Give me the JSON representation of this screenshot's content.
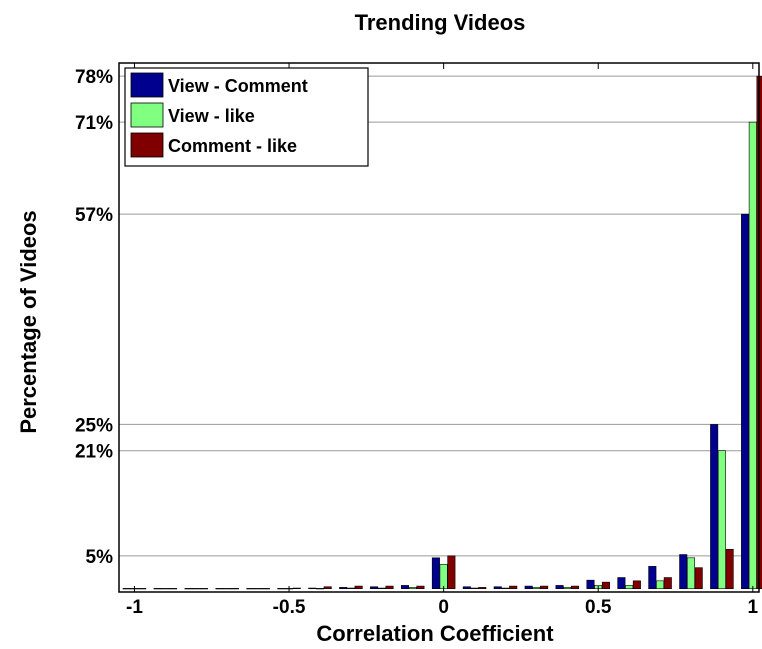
{
  "chart_data": {
    "type": "bar",
    "title": "Trending Videos",
    "xlabel": "Correlation Coefficient",
    "ylabel": "Percentage of Videos",
    "xlim": [
      -1.05,
      1.02
    ],
    "ylim": [
      -0.5,
      80
    ],
    "x_ticks": [
      -1,
      -0.5,
      0,
      0.5,
      1
    ],
    "x_tick_labels": [
      "-1",
      "-0.5",
      "0",
      "0.5",
      "1"
    ],
    "y_ticks": [
      5,
      21,
      25,
      57,
      71,
      78
    ],
    "y_tick_labels": [
      "5%",
      "21%",
      "25%",
      "57%",
      "71%",
      "78%"
    ],
    "grid": "horizontal at y ticks",
    "legend_position": "top-left",
    "x": [
      -1,
      -0.9,
      -0.8,
      -0.7,
      -0.6,
      -0.5,
      -0.4,
      -0.3,
      -0.2,
      -0.1,
      0,
      0.1,
      0.2,
      0.3,
      0.4,
      0.5,
      0.6,
      0.7,
      0.8,
      0.9,
      1
    ],
    "series": [
      {
        "name": "View - Comment",
        "color": "#00008f",
        "values": [
          0.05,
          0.05,
          0.05,
          0.05,
          0.05,
          0.05,
          0.1,
          0.2,
          0.3,
          0.5,
          4.7,
          0.3,
          0.3,
          0.4,
          0.5,
          1.3,
          1.7,
          3.4,
          5.2,
          25,
          57
        ]
      },
      {
        "name": "View - like",
        "color": "#80ff80",
        "values": [
          0.05,
          0.05,
          0.05,
          0.05,
          0.05,
          0.05,
          0.05,
          0.1,
          0.1,
          0.2,
          3.7,
          0.1,
          0.1,
          0.2,
          0.2,
          0.5,
          0.5,
          1.2,
          4.7,
          21,
          71
        ]
      },
      {
        "name": "Comment - like",
        "color": "#800000",
        "values": [
          0.05,
          0.05,
          0.05,
          0.05,
          0.05,
          0.1,
          0.3,
          0.4,
          0.4,
          0.4,
          5.0,
          0.2,
          0.4,
          0.4,
          0.4,
          1.0,
          1.2,
          1.7,
          3.2,
          6.0,
          78
        ]
      }
    ]
  }
}
